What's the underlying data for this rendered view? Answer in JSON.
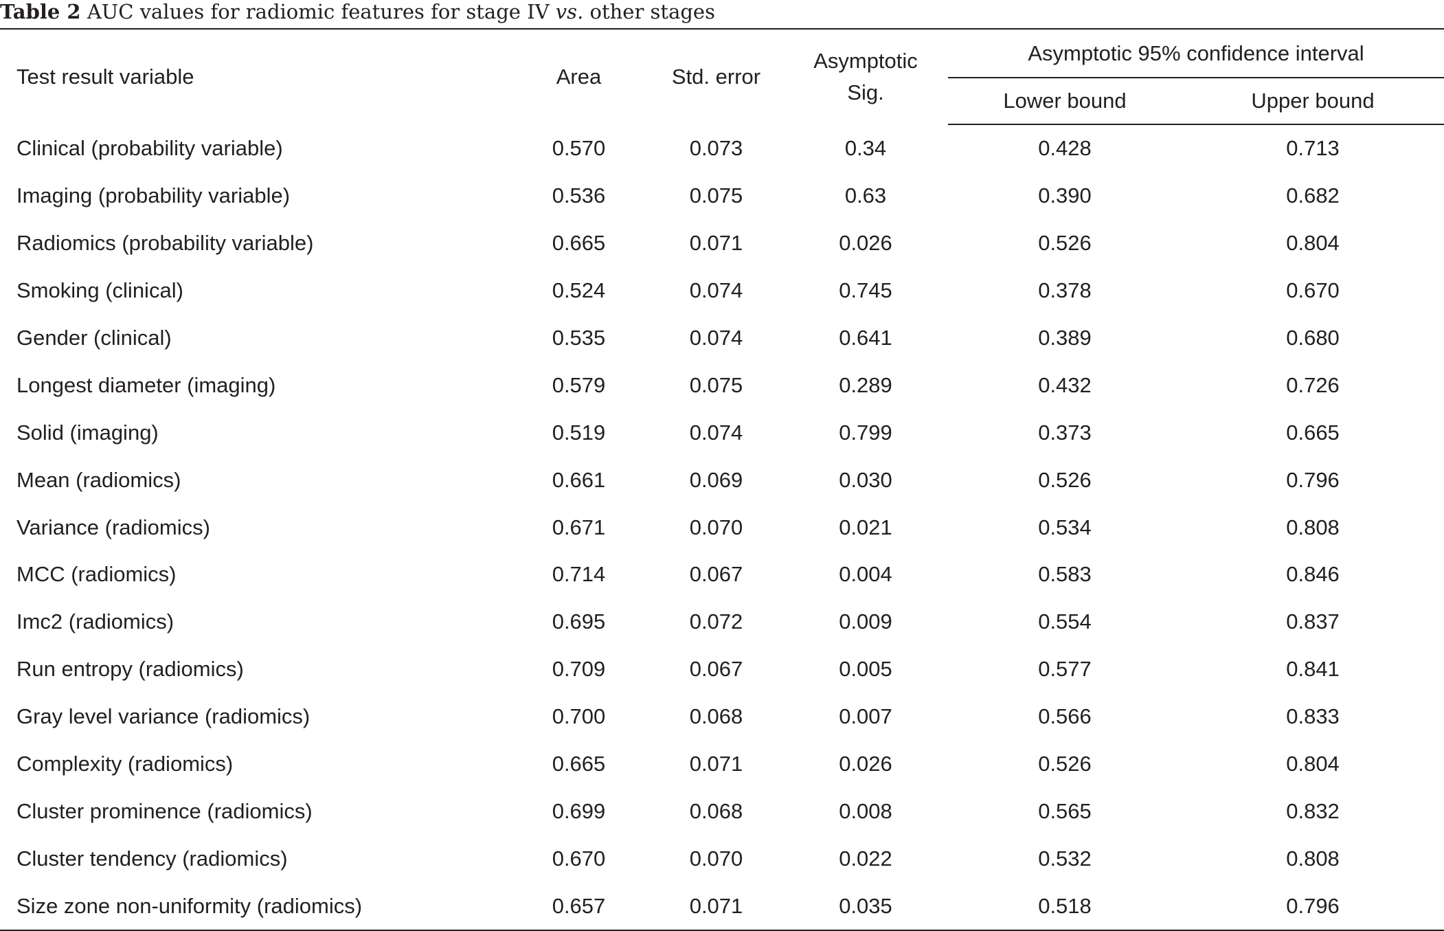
{
  "caption": {
    "label": "Table 2",
    "text_before": " AUC values for radiomic features for stage IV ",
    "text_italic": "vs.",
    "text_after": " other stages"
  },
  "headers": {
    "variable": "Test result variable",
    "area": "Area",
    "std_error": "Std. error",
    "asymptotic_sig_line1": "Asymptotic",
    "asymptotic_sig_line2": "Sig.",
    "ci_group": "Asymptotic 95% confidence interval",
    "lower_bound": "Lower bound",
    "upper_bound": "Upper bound"
  },
  "rows": [
    {
      "variable": "Clinical (probability variable)",
      "area": "0.570",
      "std_error": "0.073",
      "sig": "0.34",
      "lower": "0.428",
      "upper": "0.713"
    },
    {
      "variable": "Imaging (probability variable)",
      "area": "0.536",
      "std_error": "0.075",
      "sig": "0.63",
      "lower": "0.390",
      "upper": "0.682"
    },
    {
      "variable": "Radiomics (probability variable)",
      "area": "0.665",
      "std_error": "0.071",
      "sig": "0.026",
      "lower": "0.526",
      "upper": "0.804"
    },
    {
      "variable": "Smoking (clinical)",
      "area": "0.524",
      "std_error": "0.074",
      "sig": "0.745",
      "lower": "0.378",
      "upper": "0.670"
    },
    {
      "variable": "Gender (clinical)",
      "area": "0.535",
      "std_error": "0.074",
      "sig": "0.641",
      "lower": "0.389",
      "upper": "0.680"
    },
    {
      "variable": "Longest diameter (imaging)",
      "area": "0.579",
      "std_error": "0.075",
      "sig": "0.289",
      "lower": "0.432",
      "upper": "0.726"
    },
    {
      "variable": "Solid (imaging)",
      "area": "0.519",
      "std_error": "0.074",
      "sig": "0.799",
      "lower": "0.373",
      "upper": "0.665"
    },
    {
      "variable": "Mean (radiomics)",
      "area": "0.661",
      "std_error": "0.069",
      "sig": "0.030",
      "lower": "0.526",
      "upper": "0.796"
    },
    {
      "variable": "Variance (radiomics)",
      "area": "0.671",
      "std_error": "0.070",
      "sig": "0.021",
      "lower": "0.534",
      "upper": "0.808"
    },
    {
      "variable": "MCC (radiomics)",
      "area": "0.714",
      "std_error": "0.067",
      "sig": "0.004",
      "lower": "0.583",
      "upper": "0.846"
    },
    {
      "variable": "Imc2 (radiomics)",
      "area": "0.695",
      "std_error": "0.072",
      "sig": "0.009",
      "lower": "0.554",
      "upper": "0.837"
    },
    {
      "variable": "Run entropy (radiomics)",
      "area": "0.709",
      "std_error": "0.067",
      "sig": "0.005",
      "lower": "0.577",
      "upper": "0.841"
    },
    {
      "variable": "Gray level variance (radiomics)",
      "area": "0.700",
      "std_error": "0.068",
      "sig": "0.007",
      "lower": "0.566",
      "upper": "0.833"
    },
    {
      "variable": "Complexity (radiomics)",
      "area": "0.665",
      "std_error": "0.071",
      "sig": "0.026",
      "lower": "0.526",
      "upper": "0.804"
    },
    {
      "variable": "Cluster prominence (radiomics)",
      "area": "0.699",
      "std_error": "0.068",
      "sig": "0.008",
      "lower": "0.565",
      "upper": "0.832"
    },
    {
      "variable": "Cluster tendency (radiomics)",
      "area": "0.670",
      "std_error": "0.070",
      "sig": "0.022",
      "lower": "0.532",
      "upper": "0.808"
    },
    {
      "variable": "Size zone non-uniformity (radiomics)",
      "area": "0.657",
      "std_error": "0.071",
      "sig": "0.035",
      "lower": "0.518",
      "upper": "0.796"
    }
  ]
}
